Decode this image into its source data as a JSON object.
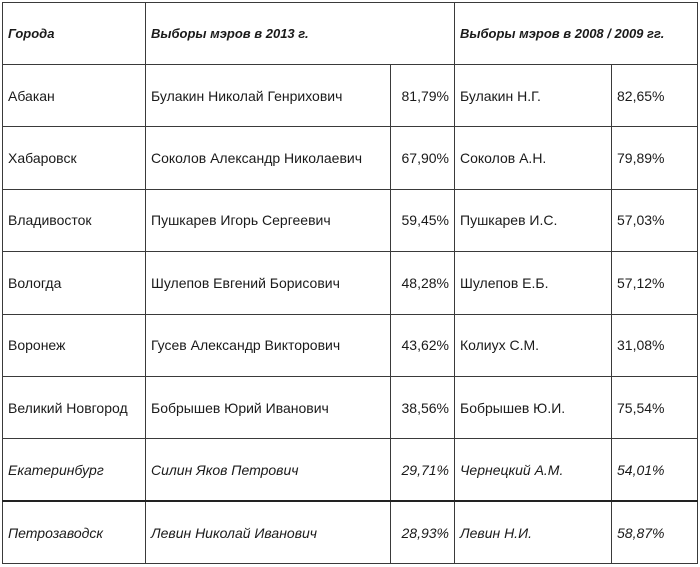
{
  "headers": {
    "city": "Города",
    "elections_2013": "Выборы мэров в 2013 г.",
    "elections_2008_2009": "Выборы мэров в 2008 / 2009 гг."
  },
  "rows": [
    {
      "city": "Абакан",
      "name_2013": "Булакин Николай Генрихович",
      "pct_2013": "81,79%",
      "name_prev": "Булакин Н.Г.",
      "pct_prev": "82,65%"
    },
    {
      "city": "Хабаровск",
      "name_2013": "Соколов Александр Николаевич",
      "pct_2013": "67,90%",
      "name_prev": "Соколов А.Н.",
      "pct_prev": "79,89%"
    },
    {
      "city": "Владивосток",
      "name_2013": "Пушкарев Игорь Сергеевич",
      "pct_2013": "59,45%",
      "name_prev": "Пушкарев И.С.",
      "pct_prev": "57,03%"
    },
    {
      "city": "Вологда",
      "name_2013": "Шулепов Евгений Борисович",
      "pct_2013": "48,28%",
      "name_prev": "Шулепов Е.Б.",
      "pct_prev": "57,12%"
    },
    {
      "city": "Воронеж",
      "name_2013": "Гусев Александр Викторович",
      "pct_2013": "43,62%",
      "name_prev": "Колиух С.М.",
      "pct_prev": "31,08%"
    },
    {
      "city": "Великий Новгород",
      "name_2013": "Бобрышев Юрий Иванович",
      "pct_2013": "38,56%",
      "name_prev": "Бобрышев Ю.И.",
      "pct_prev": "75,54%"
    },
    {
      "city": "Екатеринбург",
      "name_2013": "Силин Яков Петрович",
      "pct_2013": "29,71%",
      "name_prev": "Чернецкий А.М.",
      "pct_prev": "54,01%"
    },
    {
      "city": "Петрозаводск",
      "name_2013": "Левин Николай Иванович",
      "pct_2013": "28,93%",
      "name_prev": "Левин Н.И.",
      "pct_prev": "58,87%"
    }
  ]
}
